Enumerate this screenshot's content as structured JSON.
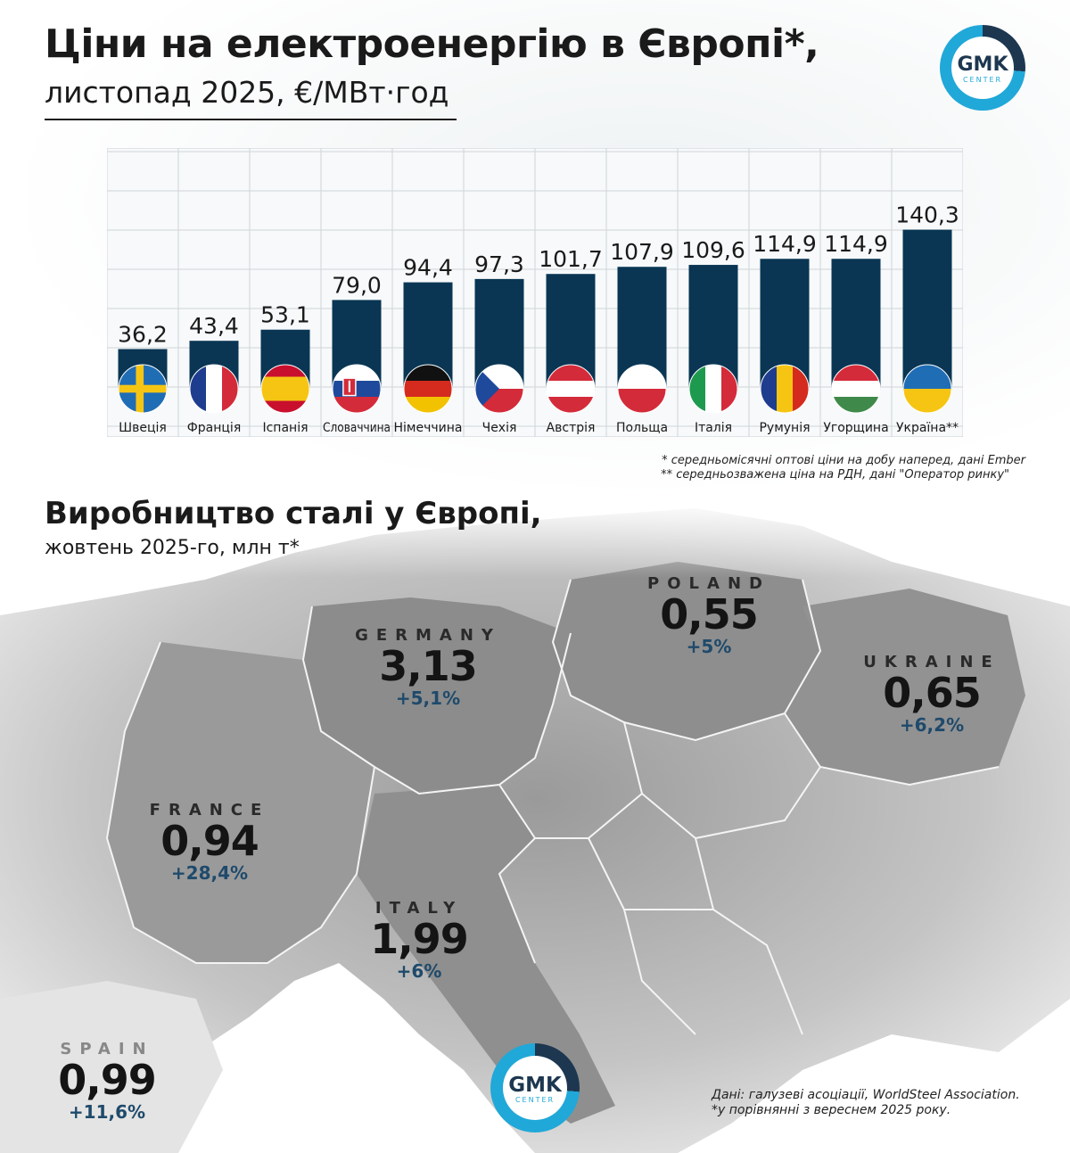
{
  "header": {
    "title": "Ціни на електроенергію в Європі*,",
    "subtitle": "листопад 2025, €/МВт·год"
  },
  "logo": {
    "text": "GMK",
    "sub": "CENTER"
  },
  "chart_data": {
    "type": "bar",
    "title": "Ціни на електроенергію в Європі*,",
    "subtitle": "листопад 2025, €/МВт·год",
    "categories": [
      "Швеція",
      "Франція",
      "Іспанія",
      "Словаччина",
      "Німеччина",
      "Чехія",
      "Австрія",
      "Польща",
      "Італія",
      "Румунія",
      "Угорщина",
      "Україна**"
    ],
    "values": [
      36.2,
      43.4,
      53.1,
      79.0,
      94.4,
      97.3,
      101.7,
      107.9,
      109.6,
      114.9,
      114.9,
      140.3
    ],
    "value_labels": [
      "36,2",
      "43,4",
      "53,1",
      "79,0",
      "94,4",
      "97,3",
      "101,7",
      "107,9",
      "109,6",
      "114,9",
      "114,9",
      "140,3"
    ],
    "ylim": [
      0,
      160
    ],
    "grid": true,
    "bar_color": "#0a3654",
    "flags": [
      "sweden-flag",
      "france-flag",
      "spain-flag",
      "slovakia-flag",
      "germany-flag",
      "czechia-flag",
      "austria-flag",
      "poland-flag",
      "italy-flag",
      "romania-flag",
      "hungary-flag",
      "ukraine-flag"
    ]
  },
  "footnotes": {
    "note1": "* середньомісячні оптові ціни на добу наперед, дані Ember",
    "note2": "** середньозважена ціна на РДН, дані \"Оператор ринку\""
  },
  "steel": {
    "title": "Виробництво сталі у Європі,",
    "subtitle": "жовтень 2025-го, млн т*",
    "countries": [
      {
        "name": "GERMANY",
        "value": "3,13",
        "change": "+5,1%"
      },
      {
        "name": "POLAND",
        "value": "0,55",
        "change": "+5%"
      },
      {
        "name": "UKRAINE",
        "value": "0,65",
        "change": "+6,2%"
      },
      {
        "name": "FRANCE",
        "value": "0,94",
        "change": "+28,4%"
      },
      {
        "name": "ITALY",
        "value": "1,99",
        "change": "+6%"
      },
      {
        "name": "SPAIN",
        "value": "0,99",
        "change": "+11,6%"
      }
    ],
    "source1": "Дані: галузеві асоціації, WorldSteel Association.",
    "source2": "*у порівнянні з вереснем 2025 року."
  },
  "colors": {
    "accent": "#20a8d8",
    "dark": "#0a3654",
    "change": "#1f4a6b"
  }
}
